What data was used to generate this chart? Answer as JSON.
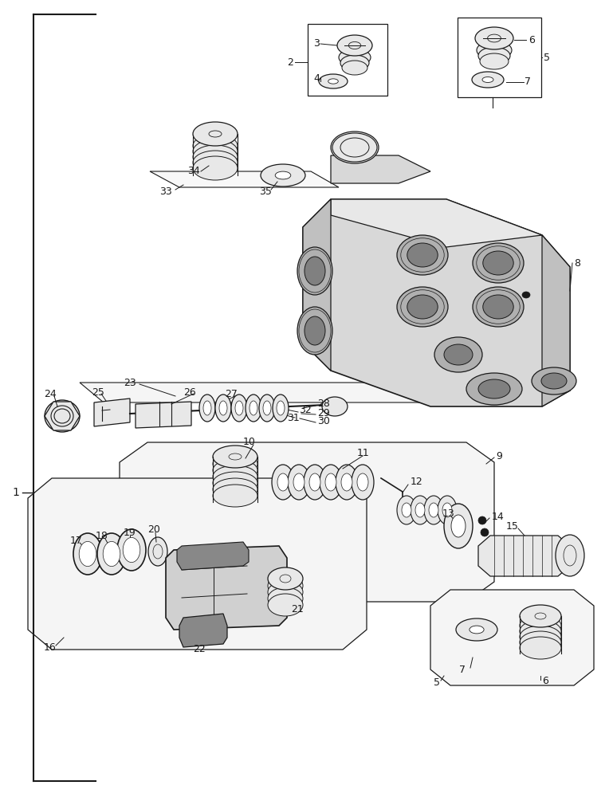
{
  "background_color": "#ffffff",
  "line_color": "#1a1a1a",
  "part_fill": "#e8e8e8",
  "part_dark": "#b0b0b0",
  "figsize": [
    7.64,
    10.0
  ],
  "dpi": 100
}
